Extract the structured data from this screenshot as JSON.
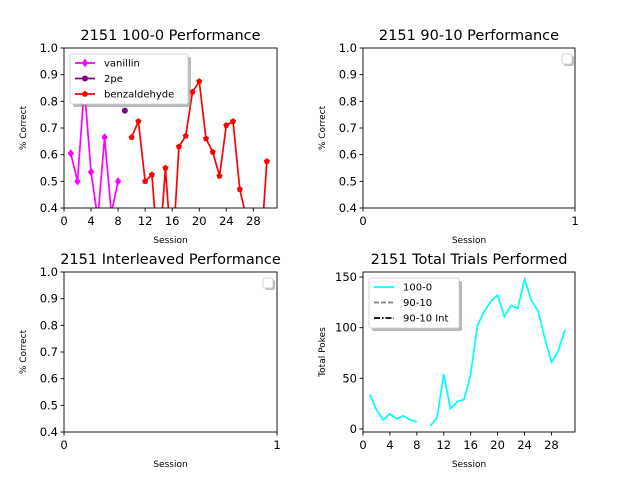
{
  "chart_data": [
    {
      "type": "line",
      "title": "2151 100-0 Performance",
      "xlabel": "Session",
      "ylabel": "% Correct",
      "xlim": [
        0,
        31.5
      ],
      "ylim": [
        0.4,
        1.0
      ],
      "xticks": [
        0,
        4,
        8,
        12,
        16,
        20,
        24,
        28
      ],
      "yticks": [
        0.4,
        0.5,
        0.6,
        0.7,
        0.8,
        0.9,
        1.0
      ],
      "legend": "upper left",
      "series": [
        {
          "name": "vanillin",
          "color": "#ff00ff",
          "marker": "diamond",
          "x": [
            1,
            2,
            3,
            4,
            5,
            6,
            7,
            8
          ],
          "y": [
            0.605,
            0.5,
            0.855,
            0.535,
            0.36,
            0.665,
            0.38,
            0.5
          ]
        },
        {
          "name": "2pe",
          "color": "#800080",
          "marker": "circle",
          "x": [
            9
          ],
          "y": [
            0.765
          ]
        },
        {
          "name": "benzaldehyde",
          "color": "#ff0000",
          "marker": "pentagon",
          "x": [
            10,
            11,
            12,
            13,
            14,
            15,
            16,
            17,
            18,
            19,
            20,
            21,
            22,
            23,
            24,
            25,
            26,
            27,
            28,
            29,
            30
          ],
          "y": [
            0.665,
            0.725,
            0.5,
            0.525,
            0.2,
            0.55,
            0.2,
            0.63,
            0.67,
            0.835,
            0.875,
            0.66,
            0.61,
            0.52,
            0.71,
            0.725,
            0.47,
            0.36,
            0.2,
            0.2,
            0.575
          ]
        }
      ]
    },
    {
      "type": "line",
      "title": "2151 90-10 Performance",
      "xlabel": "Session",
      "ylabel": "% Correct",
      "xlim": [
        0,
        1
      ],
      "ylim": [
        0.4,
        1.0
      ],
      "xticks": [
        0,
        1
      ],
      "yticks": [
        0.4,
        0.5,
        0.6,
        0.7,
        0.8,
        0.9,
        1.0
      ],
      "legend": "upper right",
      "series": []
    },
    {
      "type": "line",
      "title": "2151 Interleaved Performance",
      "xlabel": "Session",
      "ylabel": "% Correct",
      "xlim": [
        0,
        1
      ],
      "ylim": [
        0.4,
        1.0
      ],
      "xticks": [
        0,
        1
      ],
      "yticks": [
        0.4,
        0.5,
        0.6,
        0.7,
        0.8,
        0.9,
        1.0
      ],
      "legend": "upper right",
      "series": []
    },
    {
      "type": "line",
      "title": "2151 Total Trials Performed",
      "xlabel": "Session",
      "ylabel": "Total Pokes",
      "xlim": [
        0,
        31.5
      ],
      "ylim": [
        -3,
        155
      ],
      "xticks": [
        0,
        4,
        8,
        12,
        16,
        20,
        24,
        28
      ],
      "yticks": [
        0,
        50,
        100,
        150
      ],
      "legend": "upper left",
      "series": [
        {
          "name": "100-0",
          "color": "#00ffff",
          "style": "solid",
          "segments": [
            {
              "x": [
                1,
                2,
                3,
                4,
                5,
                6,
                7,
                8
              ],
              "y": [
                34,
                19,
                9,
                15,
                10,
                13,
                9,
                7
              ]
            },
            {
              "x": [
                10,
                11,
                12,
                13,
                14,
                15,
                16,
                17,
                18,
                19,
                20,
                21,
                22,
                23,
                24,
                25,
                26,
                27,
                28,
                29,
                30
              ],
              "y": [
                3,
                11,
                54,
                20,
                27,
                29,
                54,
                102,
                116,
                126,
                132,
                111,
                122,
                119,
                148,
                127,
                117,
                90,
                66,
                77,
                98
              ]
            }
          ]
        },
        {
          "name": "90-10",
          "color": "#808080",
          "style": "dashed",
          "segments": []
        },
        {
          "name": "90-10 Int",
          "color": "#000000",
          "style": "dashdot",
          "segments": []
        }
      ]
    }
  ]
}
